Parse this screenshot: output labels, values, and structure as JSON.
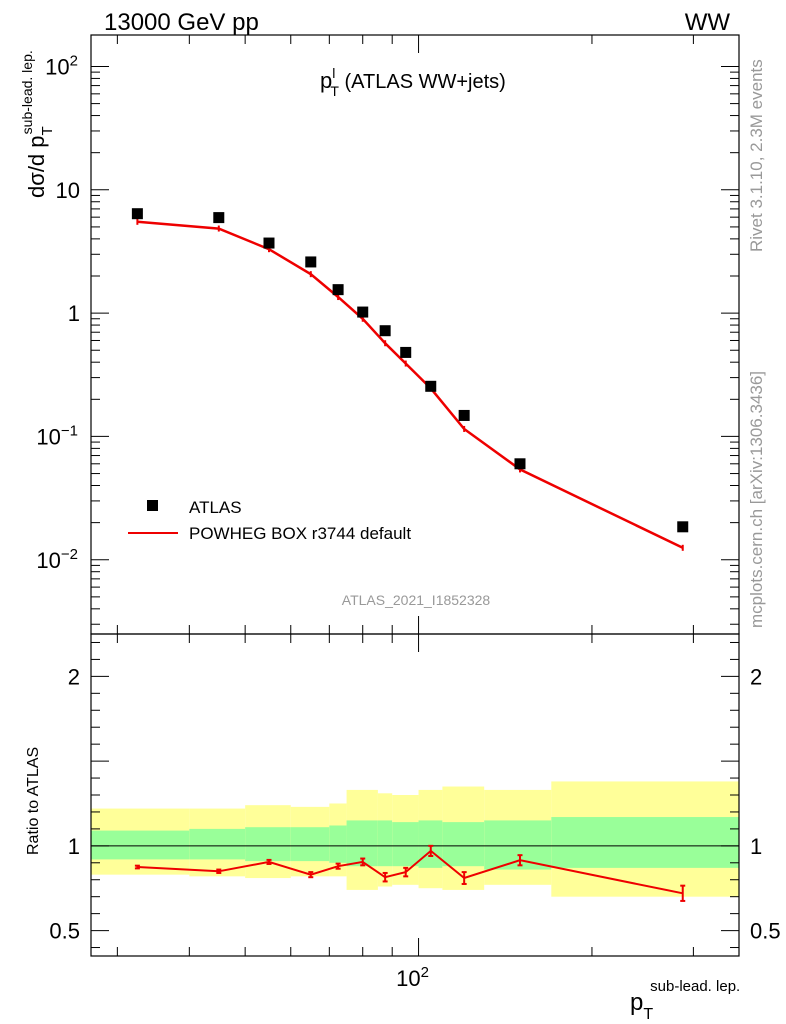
{
  "header": {
    "left": "13000 GeV pp",
    "right": "WW"
  },
  "side_labels": {
    "rivet": "Rivet 3.1.10,  2.3M events",
    "mcplots": "mcplots.cern.ch [arXiv:1306.3436]"
  },
  "analysis_id": "ATLAS_2021_I1852328",
  "plot_title": {
    "main": "p",
    "sup": "l",
    "sub": "T",
    "rest": " (ATLAS WW+jets)"
  },
  "y_axis": {
    "main": "dσ/d p",
    "sub": "T",
    "sup": "sub-lead. lep."
  },
  "x_axis": {
    "main": "p",
    "sub": "T",
    "sup": "sub-lead. lep."
  },
  "ratio_axis_label": "Ratio to ATLAS",
  "legend": {
    "data": "ATLAS",
    "mc": "POWHEG BOX r3744 default"
  },
  "colors": {
    "data": "#000000",
    "mc": "#ee0000",
    "band_inner": "#99ff99",
    "band_outer": "#ffff99"
  },
  "chart_data": {
    "type": "scatter",
    "x_scale": "log",
    "y_scale": "log",
    "xlim": [
      27,
      360
    ],
    "main_ylim": [
      0.0025,
      180
    ],
    "ratio_ylim": [
      0.35,
      2.25
    ],
    "x_ticks": [
      {
        "value": 100,
        "label": "10",
        "sup": "2"
      }
    ],
    "y_ticks": [
      {
        "value": 100,
        "label": "10",
        "sup": "2"
      },
      {
        "value": 10,
        "label": "10",
        "sup": ""
      },
      {
        "value": 1,
        "label": "1",
        "sup": ""
      },
      {
        "value": 0.1,
        "label": "10",
        "sup": "−1"
      },
      {
        "value": 0.01,
        "label": "10",
        "sup": "−2"
      }
    ],
    "ratio_ticks": [
      {
        "value": 2,
        "label": "2"
      },
      {
        "value": 1,
        "label": "1"
      },
      {
        "value": 0.5,
        "label": "0.5"
      }
    ],
    "data_points": {
      "name": "ATLAS",
      "x": [
        32.5,
        45,
        55,
        65,
        72.5,
        80,
        87.5,
        95,
        105,
        120,
        150,
        287.5
      ],
      "y": [
        6.4,
        5.95,
        3.7,
        2.6,
        1.55,
        1.02,
        0.72,
        0.48,
        0.255,
        0.148,
        0.06,
        0.0185
      ]
    },
    "mc_series": {
      "name": "POWHEG BOX r3744 default",
      "x": [
        32.5,
        45,
        55,
        65,
        72.5,
        80,
        87.5,
        95,
        105,
        120,
        150,
        287.5
      ],
      "y": [
        5.5,
        4.85,
        3.3,
        2.07,
        1.35,
        0.9,
        0.57,
        0.39,
        0.245,
        0.115,
        0.054,
        0.0125
      ]
    },
    "ratio_series": {
      "name": "POWHEG BOX r3744 default",
      "x": [
        32.5,
        45,
        55,
        65,
        72.5,
        80,
        87.5,
        95,
        105,
        120,
        150,
        287.5
      ],
      "y": [
        0.875,
        0.85,
        0.905,
        0.83,
        0.88,
        0.905,
        0.815,
        0.845,
        0.97,
        0.81,
        0.915,
        0.72
      ],
      "err": [
        0.008,
        0.01,
        0.012,
        0.015,
        0.015,
        0.02,
        0.025,
        0.025,
        0.03,
        0.035,
        0.03,
        0.045
      ]
    },
    "bands": {
      "edges": [
        27,
        40,
        50,
        60,
        70,
        75,
        85,
        90,
        100,
        110,
        130,
        170,
        360
      ],
      "inner_low": [
        0.92,
        0.92,
        0.91,
        0.91,
        0.9,
        0.88,
        0.88,
        0.88,
        0.87,
        0.88,
        0.86,
        0.87
      ],
      "inner_high": [
        1.09,
        1.1,
        1.11,
        1.11,
        1.12,
        1.15,
        1.15,
        1.14,
        1.15,
        1.14,
        1.15,
        1.17
      ],
      "outer_low": [
        0.83,
        0.82,
        0.81,
        0.82,
        0.82,
        0.74,
        0.76,
        0.77,
        0.75,
        0.74,
        0.77,
        0.7
      ],
      "outer_high": [
        1.22,
        1.22,
        1.24,
        1.23,
        1.25,
        1.33,
        1.31,
        1.3,
        1.33,
        1.35,
        1.33,
        1.38
      ]
    },
    "legend_position": "bottom-left"
  }
}
